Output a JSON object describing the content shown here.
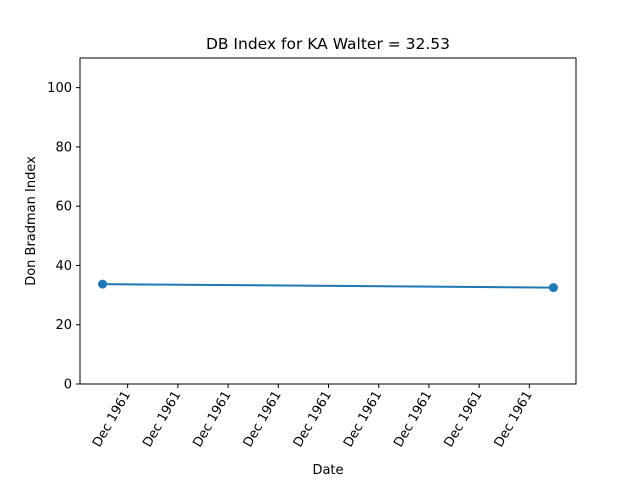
{
  "chart_data": {
    "type": "line",
    "title": "DB Index for KA Walter = 32.53",
    "xlabel": "Date",
    "ylabel": "Don Bradman Index",
    "ylim": [
      0,
      110
    ],
    "yticks": [
      0,
      20,
      40,
      60,
      80,
      100
    ],
    "xlim": [
      -0.05,
      1.05
    ],
    "xticks": [
      0.0557,
      0.1671,
      0.2784,
      0.3898,
      0.5011,
      0.6125,
      0.7238,
      0.8352,
      0.9465
    ],
    "xtick_labels": [
      "Dec 1961",
      "Dec 1961",
      "Dec 1961",
      "Dec 1961",
      "Dec 1961",
      "Dec 1961",
      "Dec 1961",
      "Dec 1961",
      "Dec 1961"
    ],
    "x_note": "x positions are relative within a single date span (all ticks read Dec 1961)",
    "series": [
      {
        "x": [
          0,
          1
        ],
        "values": [
          33.7,
          32.53
        ],
        "color": "#1f77b4",
        "marker": "circle"
      }
    ],
    "grid": false,
    "legend": "none"
  }
}
